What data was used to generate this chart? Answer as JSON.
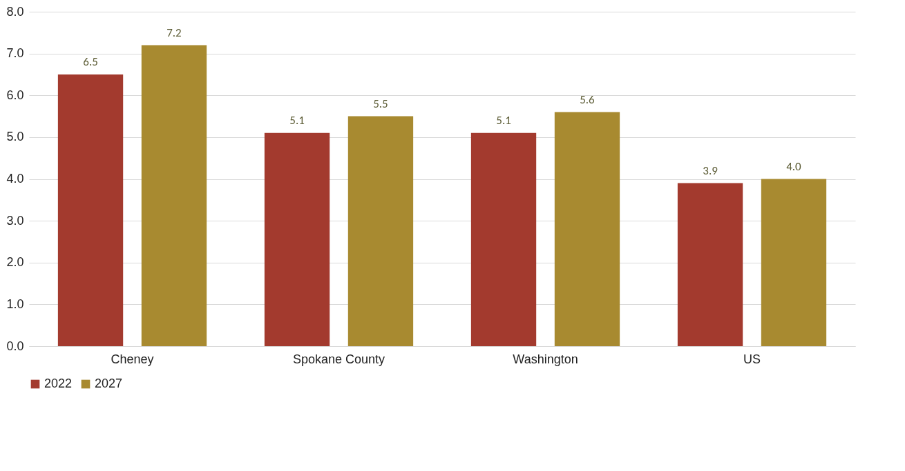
{
  "chart_data": {
    "type": "bar",
    "categories": [
      "Cheney",
      "Spokane County",
      "Washington",
      "US"
    ],
    "series": [
      {
        "name": "2022",
        "color": "#a33a2e",
        "values": [
          6.5,
          5.1,
          5.1,
          3.9
        ],
        "value_labels": [
          "6.5",
          "5.1",
          "5.1",
          "3.9"
        ]
      },
      {
        "name": "2027",
        "color": "#a88a30",
        "values": [
          7.2,
          5.5,
          5.6,
          4.0
        ],
        "value_labels": [
          "7.2",
          "5.5",
          "5.6",
          "4.0"
        ]
      }
    ],
    "ylim": [
      0,
      8
    ],
    "yticks": [
      {
        "value": 0,
        "label": "0.0"
      },
      {
        "value": 1,
        "label": "1.0"
      },
      {
        "value": 2,
        "label": "2.0"
      },
      {
        "value": 3,
        "label": "3.0"
      },
      {
        "value": 4,
        "label": "4.0"
      },
      {
        "value": 5,
        "label": "5.0"
      },
      {
        "value": 6,
        "label": "6.0"
      },
      {
        "value": 7,
        "label": "7.0"
      },
      {
        "value": 8,
        "label": "8.0"
      }
    ],
    "grid": "y",
    "legend": "bottom"
  }
}
